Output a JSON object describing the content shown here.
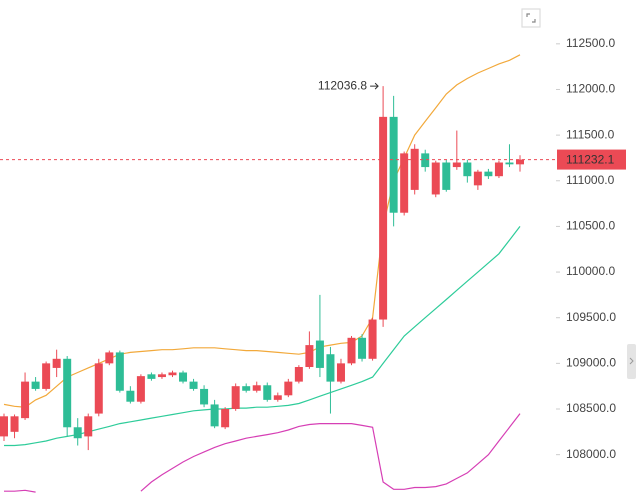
{
  "chart_data": {
    "type": "candlestick",
    "ylim": [
      107580,
      112980
    ],
    "yticks": [
      {
        "value": 112500,
        "label": "112500.0"
      },
      {
        "value": 112000,
        "label": "112000.0"
      },
      {
        "value": 111500,
        "label": "111500.0"
      },
      {
        "value": 111000,
        "label": "111000.0"
      },
      {
        "value": 110500,
        "label": "110500.0"
      },
      {
        "value": 110000,
        "label": "110000.0"
      },
      {
        "value": 109500,
        "label": "109500.0"
      },
      {
        "value": 109000,
        "label": "109000.0"
      },
      {
        "value": 108500,
        "label": "108500.0"
      },
      {
        "value": 108000,
        "label": "108000.0"
      }
    ],
    "up_color": "#eb4a55",
    "down_color": "#2ebd96",
    "open": [
      108200,
      108250,
      108400,
      108800,
      108720,
      108950,
      109050,
      108300,
      108200,
      108450,
      109000,
      109120,
      108700,
      108580,
      108880,
      108850,
      108870,
      108900,
      108800,
      108720,
      108550,
      108300,
      108500,
      108750,
      108700,
      108760,
      108600,
      108650,
      108800,
      108960,
      109250,
      109100,
      108800,
      109000,
      109280,
      109050,
      109480,
      111700,
      110650,
      110900,
      111300,
      110850,
      111200,
      111150,
      111200,
      110950,
      111100,
      111050,
      111200,
      111180
    ],
    "high": [
      108450,
      108440,
      108900,
      108850,
      109020,
      109150,
      109080,
      108400,
      108450,
      109050,
      109140,
      109140,
      108750,
      108880,
      108900,
      108900,
      108920,
      108920,
      108830,
      108760,
      108600,
      108520,
      108780,
      108780,
      108800,
      108790,
      108680,
      108830,
      108980,
      109350,
      109750,
      109180,
      109050,
      109300,
      109320,
      109500,
      112036.8,
      111930,
      111320,
      111400,
      111340,
      111220,
      111230,
      111550,
      111230,
      111120,
      111130,
      111220,
      111400,
      111280
    ],
    "low": [
      108150,
      108180,
      108380,
      108700,
      108700,
      108850,
      108200,
      108100,
      108050,
      108420,
      108980,
      108680,
      108560,
      108560,
      108810,
      108830,
      108850,
      108780,
      108700,
      108520,
      108290,
      108280,
      108480,
      108680,
      108680,
      108580,
      108580,
      108630,
      108780,
      108940,
      108850,
      108450,
      108780,
      108980,
      109020,
      109030,
      109400,
      110500,
      110620,
      110850,
      111100,
      110820,
      110880,
      111120,
      110980,
      110900,
      111020,
      111030,
      111150,
      111100
    ],
    "close": [
      108420,
      108420,
      108800,
      108720,
      109000,
      109050,
      108300,
      108180,
      108420,
      109000,
      109120,
      108700,
      108580,
      108860,
      108830,
      108880,
      108900,
      108800,
      108720,
      108550,
      108310,
      108500,
      108750,
      108700,
      108760,
      108600,
      108650,
      108800,
      108960,
      109200,
      108950,
      108800,
      109000,
      109280,
      109050,
      109480,
      111700,
      110650,
      111300,
      111350,
      111150,
      111200,
      110900,
      111200,
      111050,
      111100,
      111050,
      111200,
      111180,
      111232.1
    ],
    "lines": [
      {
        "color": "#f2a93b",
        "values": [
          108550,
          108530,
          108520,
          108600,
          108650,
          108750,
          108850,
          108900,
          108950,
          109000,
          109050,
          109100,
          109120,
          109130,
          109140,
          109150,
          109150,
          109160,
          109170,
          109170,
          109170,
          109160,
          109150,
          109140,
          109140,
          109130,
          109120,
          109110,
          109100,
          109120,
          109180,
          109200,
          109220,
          109230,
          109300,
          109500,
          110500,
          111000,
          111250,
          111500,
          111650,
          111800,
          111950,
          112050,
          112120,
          112180,
          112230,
          112280,
          112320,
          112380
        ]
      },
      {
        "color": "#2ecc9a",
        "values": [
          108100,
          108100,
          108110,
          108130,
          108150,
          108180,
          108200,
          108220,
          108250,
          108280,
          108310,
          108340,
          108360,
          108380,
          108400,
          108420,
          108440,
          108460,
          108480,
          108490,
          108500,
          108500,
          108510,
          108510,
          108520,
          108520,
          108530,
          108540,
          108560,
          108600,
          108640,
          108680,
          108720,
          108760,
          108800,
          108850,
          109000,
          109150,
          109300,
          109400,
          109500,
          109600,
          109700,
          109800,
          109900,
          110000,
          110100,
          110200,
          110350,
          110500
        ]
      },
      {
        "color": "#d63fb5",
        "values": [
          107600,
          107600,
          107610,
          107590,
          null,
          null,
          null,
          null,
          null,
          null,
          null,
          null,
          null,
          107600,
          107700,
          107780,
          107850,
          107920,
          107980,
          108030,
          108080,
          108120,
          108150,
          108180,
          108200,
          108220,
          108240,
          108270,
          108310,
          108330,
          108340,
          108340,
          108340,
          108340,
          108320,
          108300,
          107700,
          107620,
          107620,
          107640,
          107640,
          107650,
          107680,
          107740,
          107800,
          107900,
          108000,
          108150,
          108300,
          108450
        ]
      }
    ]
  }
}
